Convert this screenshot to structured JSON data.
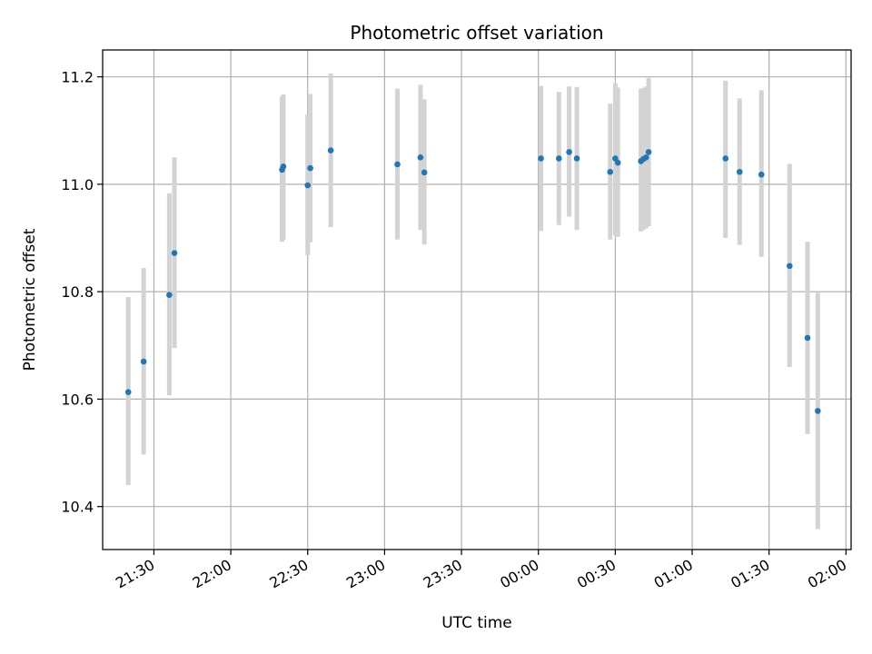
{
  "chart_data": {
    "type": "scatter",
    "title": "Photometric offset variation",
    "xlabel": "UTC time",
    "ylabel": "Photometric offset",
    "x_axis_type": "time",
    "x_start_date": "2020-01-01",
    "xlim": [
      "21:10",
      "02:02+1"
    ],
    "ylim": [
      10.32,
      11.25
    ],
    "x_ticks": [
      {
        "time": "21:30",
        "label": "21:30"
      },
      {
        "time": "22:00",
        "label": "22:00"
      },
      {
        "time": "22:30",
        "label": "22:30"
      },
      {
        "time": "23:00",
        "label": "23:00"
      },
      {
        "time": "23:30",
        "label": "23:30"
      },
      {
        "time": "00:00+1",
        "label": "00:00"
      },
      {
        "time": "00:30+1",
        "label": "00:30"
      },
      {
        "time": "01:00+1",
        "label": "01:00"
      },
      {
        "time": "01:30+1",
        "label": "01:30"
      },
      {
        "time": "02:00+1",
        "label": "02:00"
      }
    ],
    "y_ticks": [
      {
        "value": 10.4,
        "label": "10.4"
      },
      {
        "value": 10.6,
        "label": "10.6"
      },
      {
        "value": 10.8,
        "label": "10.8"
      },
      {
        "value": 11.0,
        "label": "11.0"
      },
      {
        "value": 11.2,
        "label": "11.2"
      }
    ],
    "grid": true,
    "marker_color": "#1f77b4",
    "errorbar_color": "#d3d3d3",
    "series": [
      {
        "name": "",
        "points": [
          {
            "t": "21:20",
            "y": 10.613,
            "lo": 10.44,
            "hi": 10.79
          },
          {
            "t": "21:26",
            "y": 10.67,
            "lo": 10.497,
            "hi": 10.844
          },
          {
            "t": "21:36",
            "y": 10.794,
            "lo": 10.607,
            "hi": 10.983
          },
          {
            "t": "21:38",
            "y": 10.872,
            "lo": 10.695,
            "hi": 11.05
          },
          {
            "t": "22:20",
            "y": 11.027,
            "lo": 10.893,
            "hi": 11.163
          },
          {
            "t": "22:20.5",
            "y": 11.033,
            "lo": 10.897,
            "hi": 11.167
          },
          {
            "t": "22:30",
            "y": 10.998,
            "lo": 10.868,
            "hi": 11.13
          },
          {
            "t": "22:31",
            "y": 11.03,
            "lo": 10.892,
            "hi": 11.168
          },
          {
            "t": "22:39",
            "y": 11.063,
            "lo": 10.92,
            "hi": 11.206
          },
          {
            "t": "23:05",
            "y": 11.037,
            "lo": 10.897,
            "hi": 11.178
          },
          {
            "t": "23:14",
            "y": 11.05,
            "lo": 10.915,
            "hi": 11.185
          },
          {
            "t": "23:15.5",
            "y": 11.022,
            "lo": 10.888,
            "hi": 11.158
          },
          {
            "t": "00:01+1",
            "y": 11.048,
            "lo": 10.913,
            "hi": 11.183
          },
          {
            "t": "00:08+1",
            "y": 11.048,
            "lo": 10.924,
            "hi": 11.172
          },
          {
            "t": "00:12+1",
            "y": 11.06,
            "lo": 10.94,
            "hi": 11.182
          },
          {
            "t": "00:15+1",
            "y": 11.048,
            "lo": 10.915,
            "hi": 11.181
          },
          {
            "t": "00:28+1",
            "y": 11.023,
            "lo": 10.897,
            "hi": 11.15
          },
          {
            "t": "00:30+1",
            "y": 11.048,
            "lo": 10.905,
            "hi": 11.188
          },
          {
            "t": "00:31+1",
            "y": 11.04,
            "lo": 10.902,
            "hi": 11.18
          },
          {
            "t": "00:40+1",
            "y": 11.043,
            "lo": 10.912,
            "hi": 11.178
          },
          {
            "t": "00:41+1",
            "y": 11.047,
            "lo": 10.915,
            "hi": 11.179
          },
          {
            "t": "00:42+1",
            "y": 11.05,
            "lo": 10.918,
            "hi": 11.182
          },
          {
            "t": "00:43+1",
            "y": 11.06,
            "lo": 10.922,
            "hi": 11.198
          },
          {
            "t": "01:13+1",
            "y": 11.048,
            "lo": 10.9,
            "hi": 11.193
          },
          {
            "t": "01:18.5+1",
            "y": 11.023,
            "lo": 10.887,
            "hi": 11.16
          },
          {
            "t": "01:27+1",
            "y": 11.018,
            "lo": 10.865,
            "hi": 11.175
          },
          {
            "t": "01:38+1",
            "y": 10.848,
            "lo": 10.66,
            "hi": 11.038
          },
          {
            "t": "01:45+1",
            "y": 10.714,
            "lo": 10.535,
            "hi": 10.893
          },
          {
            "t": "01:49+1",
            "y": 10.578,
            "lo": 10.358,
            "hi": 10.798
          }
        ]
      }
    ]
  }
}
